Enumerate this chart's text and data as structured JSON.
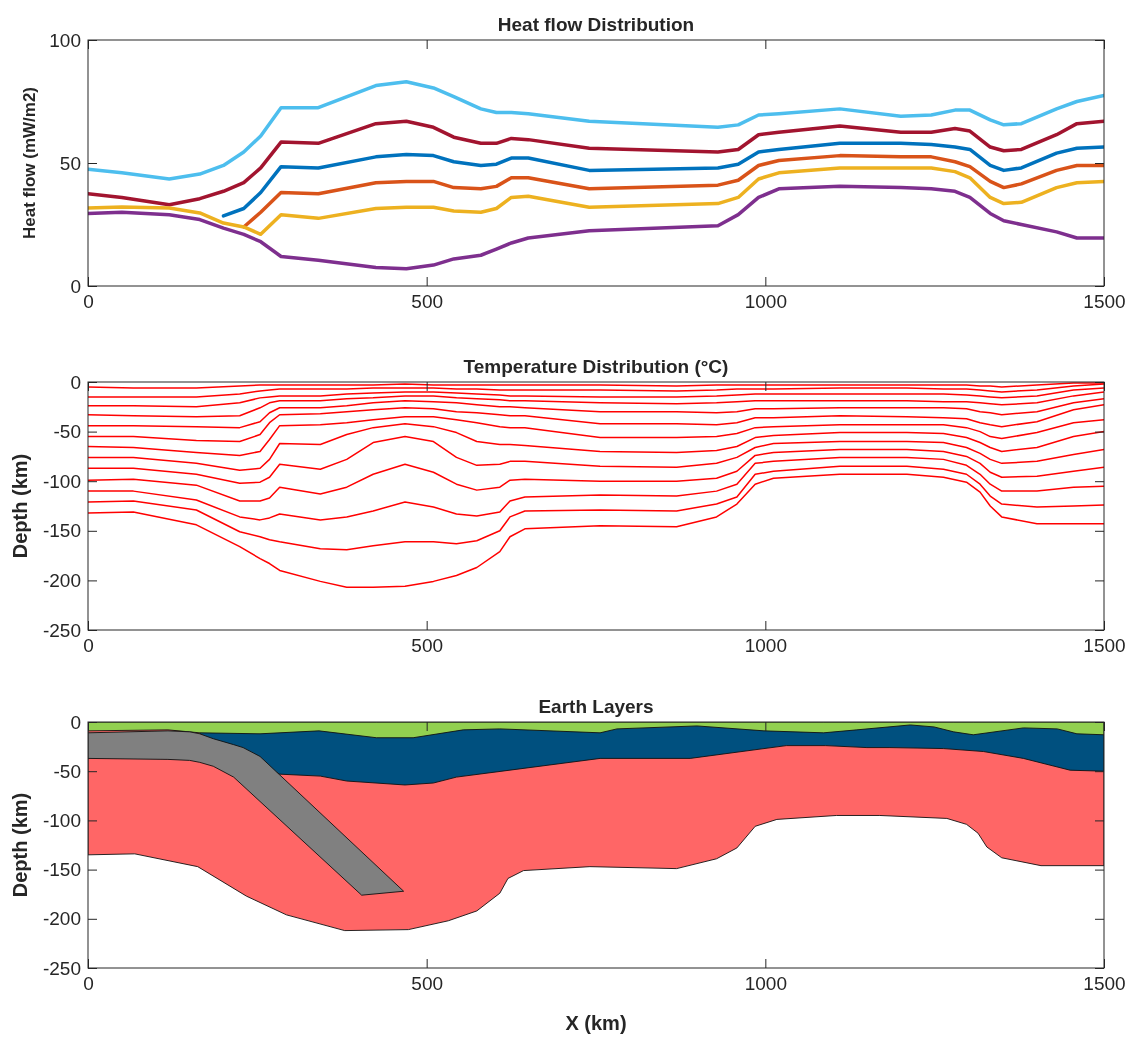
{
  "chart_data": [
    {
      "type": "line",
      "title": "Heat flow Distribution",
      "ylabel": "Heat flow (mW/m2)",
      "x": [
        0,
        50,
        120,
        165,
        200,
        230,
        255,
        285,
        340,
        425,
        470,
        510,
        540,
        580,
        603,
        625,
        650,
        740,
        930,
        960,
        990,
        1020,
        1110,
        1200,
        1245,
        1280,
        1302,
        1332,
        1352,
        1378,
        1430,
        1460,
        1500
      ],
      "series": [
        {
          "color": "#4dbeee",
          "values": [
            47.5,
            46,
            43.5,
            45.5,
            49,
            54.5,
            61,
            72.5,
            72.5,
            81.5,
            83,
            80.5,
            77,
            72,
            70.5,
            70.5,
            70,
            67,
            64.5,
            65.5,
            69.5,
            70,
            72,
            69,
            69.5,
            71.5,
            71.5,
            67.5,
            65.5,
            66,
            72,
            75,
            77.5
          ]
        },
        {
          "color": "#a2142f",
          "values": [
            37.5,
            36,
            33,
            35.5,
            38.5,
            42,
            48,
            58.5,
            58,
            66,
            67,
            64.5,
            60.5,
            58,
            58,
            60,
            59.5,
            56,
            54.5,
            55.5,
            61.5,
            62.5,
            65,
            62.5,
            62.5,
            64,
            63,
            56.5,
            55,
            55.5,
            61.5,
            66,
            67
          ]
        },
        {
          "color": "#0072bd",
          "values": [
            null,
            null,
            null,
            null,
            28.5,
            31.5,
            38,
            48.5,
            48,
            52.5,
            53.5,
            53,
            50.5,
            49,
            49.5,
            52,
            52,
            47,
            48,
            49.5,
            54.5,
            55.5,
            58,
            58,
            57.5,
            56.5,
            55.5,
            49,
            47,
            48,
            54,
            56,
            56.5
          ]
        },
        {
          "color": "#d95319",
          "values": [
            null,
            null,
            null,
            null,
            null,
            24,
            30,
            38,
            37.5,
            42,
            42.5,
            42.5,
            40,
            39.5,
            40.5,
            44,
            44,
            39.5,
            41,
            43,
            49,
            51,
            53,
            52.5,
            52.5,
            50.5,
            48.5,
            42.5,
            40,
            41.5,
            47,
            49,
            49
          ]
        },
        {
          "color": "#edb120",
          "values": [
            31.7,
            32.1,
            31.7,
            29.7,
            25.6,
            24,
            21,
            29,
            27.5,
            31.5,
            32,
            32,
            30.5,
            30,
            31.5,
            36,
            36.5,
            32,
            33.5,
            36,
            43.5,
            46,
            48,
            48,
            48,
            46.5,
            44,
            36,
            33.5,
            34,
            40,
            42,
            42.5
          ]
        },
        {
          "color": "#7e2f8e",
          "values": [
            29.5,
            30,
            29,
            27,
            23.5,
            21,
            18,
            12,
            10.5,
            7.5,
            7,
            8.5,
            11,
            12.5,
            15,
            17.5,
            19.5,
            22.5,
            24.5,
            29,
            36,
            39.5,
            40.5,
            40,
            39.5,
            38.5,
            36,
            29.5,
            26.5,
            25,
            22,
            19.5,
            19.5
          ]
        }
      ],
      "xlim": [
        0,
        1500
      ],
      "ylim": [
        0,
        100
      ],
      "xticks": [
        0,
        500,
        1000,
        1500
      ],
      "yticks": [
        0,
        50,
        100
      ]
    },
    {
      "type": "line",
      "title": "Temperature Distribution (°C)",
      "ylabel": "Depth (km)",
      "x": [
        0,
        67,
        160,
        224,
        254,
        268,
        283,
        343,
        382,
        421,
        468,
        510,
        544,
        574,
        608,
        623,
        645,
        756,
        869,
        928,
        958,
        985,
        1012,
        1110,
        1209,
        1263,
        1297,
        1317,
        1332,
        1349,
        1401,
        1455,
        1500
      ],
      "series": [
        {
          "color": "#ff0000",
          "values": [
            -5,
            -6,
            -6,
            -4,
            -3,
            -3,
            -3,
            -3,
            -3,
            -3,
            -2,
            -3,
            -3,
            -3,
            -3,
            -3,
            -3,
            -3,
            -4,
            -3,
            -3,
            -3,
            -3,
            -3,
            -3,
            -3,
            -3,
            -4,
            -4,
            -5,
            -3,
            -1,
            -1
          ]
        },
        {
          "color": "#ff0000",
          "values": [
            -15,
            -15,
            -15,
            -12,
            -9,
            -8,
            -7,
            -7,
            -7,
            -6,
            -6,
            -6,
            -7,
            -7,
            -8,
            -8,
            -8,
            -8,
            -9,
            -8,
            -7,
            -7,
            -7,
            -6,
            -6,
            -7,
            -7,
            -8,
            -9,
            -10,
            -8,
            -4,
            -2
          ]
        },
        {
          "color": "#ff0000",
          "values": [
            -24,
            -24,
            -25,
            -21,
            -16,
            -15,
            -14,
            -14,
            -12,
            -11,
            -10,
            -10,
            -11,
            -12,
            -13,
            -14,
            -14,
            -15,
            -15,
            -14,
            -13,
            -12,
            -12,
            -12,
            -12,
            -12,
            -13,
            -14,
            -15,
            -16,
            -14,
            -8,
            -6
          ]
        },
        {
          "color": "#ff0000",
          "values": [
            -33,
            -34,
            -35,
            -34,
            -26,
            -21,
            -19,
            -19,
            -17,
            -16,
            -14,
            -14,
            -16,
            -17,
            -18,
            -19,
            -19,
            -21,
            -22,
            -21,
            -20,
            -19,
            -19,
            -19,
            -19,
            -20,
            -20,
            -21,
            -22,
            -23,
            -21,
            -14,
            -10
          ]
        },
        {
          "color": "#ff0000",
          "values": [
            -44,
            -44,
            -45,
            -46,
            -40,
            -31,
            -26,
            -26,
            -24,
            -21,
            -19,
            -20,
            -21,
            -23,
            -25,
            -25,
            -26,
            -30,
            -30,
            -31,
            -30,
            -27,
            -27,
            -26,
            -26,
            -26,
            -27,
            -30,
            -31,
            -33,
            -30,
            -21,
            -17
          ]
        },
        {
          "color": "#ff0000",
          "values": [
            -55,
            -55,
            -59,
            -60,
            -53,
            -41,
            -33,
            -32,
            -30,
            -28,
            -26,
            -27,
            -30,
            -31,
            -33,
            -34,
            -34,
            -42,
            -42,
            -43,
            -41,
            -36,
            -36,
            -34,
            -35,
            -36,
            -37,
            -41,
            -43,
            -45,
            -40,
            -28,
            -23
          ]
        },
        {
          "color": "#ff0000",
          "values": [
            -65,
            -66,
            -71,
            -74,
            -70,
            -58,
            -44,
            -43,
            -41,
            -38,
            -35,
            -35,
            -38,
            -41,
            -45,
            -46,
            -46,
            -56,
            -56,
            -55,
            -52,
            -46,
            -45,
            -43,
            -43,
            -43,
            -46,
            -50,
            -55,
            -57,
            -51,
            -41,
            -38
          ]
        },
        {
          "color": "#ff0000",
          "values": [
            -76,
            -76,
            -82,
            -89,
            -87,
            -78,
            -62,
            -63,
            -53,
            -46,
            -42,
            -45,
            -51,
            -60,
            -63,
            -63,
            -64,
            -70,
            -71,
            -69,
            -65,
            -56,
            -54,
            -51,
            -51,
            -52,
            -56,
            -61,
            -66,
            -70,
            -66,
            -55,
            -50
          ]
        },
        {
          "color": "#ff0000",
          "values": [
            -87,
            -87,
            -93,
            -102,
            -101,
            -96,
            -83,
            -88,
            -78,
            -61,
            -55,
            -60,
            -76,
            -84,
            -83,
            -80,
            -80,
            -85,
            -86,
            -82,
            -76,
            -66,
            -62,
            -60,
            -60,
            -61,
            -66,
            -72,
            -78,
            -82,
            -80,
            -73,
            -68
          ]
        },
        {
          "color": "#ff0000",
          "values": [
            -99,
            -98,
            -104,
            -120,
            -120,
            -117,
            -106,
            -113,
            -106,
            -93,
            -83,
            -91,
            -103,
            -109,
            -106,
            -99,
            -98,
            -100,
            -100,
            -97,
            -90,
            -74,
            -71,
            -68,
            -68,
            -70,
            -75,
            -82,
            -91,
            -96,
            -95,
            -90,
            -86
          ]
        },
        {
          "color": "#ff0000",
          "values": [
            -110,
            -110,
            -119,
            -136,
            -139,
            -137,
            -133,
            -139,
            -136,
            -130,
            -121,
            -126,
            -133,
            -135,
            -131,
            -120,
            -116,
            -114,
            -115,
            -110,
            -103,
            -82,
            -80,
            -76,
            -76,
            -78,
            -84,
            -93,
            -103,
            -110,
            -110,
            -106,
            -105
          ]
        },
        {
          "color": "#ff0000",
          "values": [
            -121,
            -120,
            -129,
            -151,
            -156,
            -159,
            -161,
            -168,
            -169,
            -165,
            -161,
            -161,
            -163,
            -160,
            -150,
            -136,
            -130,
            -129,
            -130,
            -123,
            -116,
            -93,
            -90,
            -85,
            -85,
            -88,
            -93,
            -103,
            -115,
            -123,
            -126,
            -125,
            -124
          ]
        },
        {
          "color": "#ff0000",
          "values": [
            -132,
            -131,
            -144,
            -166,
            -178,
            -183,
            -190,
            -201,
            -207,
            -207,
            -206,
            -201,
            -195,
            -187,
            -171,
            -156,
            -148,
            -145,
            -146,
            -136,
            -123,
            -103,
            -97,
            -93,
            -93,
            -96,
            -101,
            -111,
            -125,
            -136,
            -143,
            -143,
            -143
          ]
        }
      ],
      "xlim": [
        0,
        1500
      ],
      "ylim": [
        -250,
        0
      ],
      "xticks": [
        0,
        500,
        1000,
        1500
      ],
      "yticks": [
        -250,
        -200,
        -150,
        -100,
        -50,
        0
      ]
    },
    {
      "type": "area",
      "title": "Earth Layers",
      "xlabel": "X (km)",
      "ylabel": "Depth (km)",
      "series": [
        {
          "color": "#ff6666",
          "x": [
            0,
            69,
            162,
            234,
            293,
            379,
            473,
            532,
            574,
            608,
            620,
            643,
            741,
            869,
            928,
            958,
            985,
            1017,
            1105,
            1169,
            1268,
            1297,
            1314,
            1327,
            1349,
            1407,
            1500
          ],
          "values": [
            -135,
            -134,
            -147,
            -177,
            -196,
            -212,
            -211,
            -202,
            -192,
            -174,
            -159,
            -151,
            -147,
            -149,
            -139,
            -128,
            -106,
            -99,
            -95,
            -95,
            -98,
            -104,
            -113,
            -127,
            -138,
            -146,
            -146
          ]
        },
        {
          "color": "#00507f",
          "x": [
            165,
            283,
            343,
            382,
            468,
            510,
            544,
            756,
            889,
            1031,
            1089,
            1150,
            1184,
            1263,
            1322,
            1381,
            1450,
            1500
          ],
          "values": [
            -12,
            -53,
            -55,
            -60,
            -64,
            -62,
            -56,
            -37,
            -37,
            -24,
            -24,
            -26,
            -26,
            -27,
            -30,
            -37,
            -49,
            -50
          ]
        },
        {
          "color": "#92d050",
          "x": [
            0,
            118,
            165,
            254,
            341,
            426,
            480,
            554,
            608,
            756,
            781,
            899,
            998,
            1086,
            1135,
            1214,
            1249,
            1278,
            1307,
            1381,
            1431,
            1460,
            1500
          ],
          "values": [
            -9,
            -8,
            -11,
            -12,
            -9,
            -16,
            -16,
            -8,
            -7,
            -11,
            -7,
            -4,
            -9,
            -11,
            -8,
            -3,
            -5,
            -10,
            -13,
            -6,
            -7,
            -12,
            -13
          ]
        },
        {
          "color": "#808080",
          "x": [
            0,
            118,
            150,
            165,
            185,
            215,
            229,
            254,
            466,
            404,
            215,
            185,
            165,
            150,
            118,
            0
          ],
          "values": [
            -11,
            -9,
            -10,
            -12,
            -17,
            -23,
            -26,
            -35,
            -172,
            -176,
            -56,
            -45,
            -41,
            -39,
            -38,
            -37
          ]
        }
      ],
      "xlim": [
        0,
        1500
      ],
      "ylim": [
        -250,
        0
      ],
      "xticks": [
        0,
        500,
        1000,
        1500
      ],
      "yticks": [
        -250,
        -200,
        -150,
        -100,
        -50,
        0
      ]
    }
  ]
}
